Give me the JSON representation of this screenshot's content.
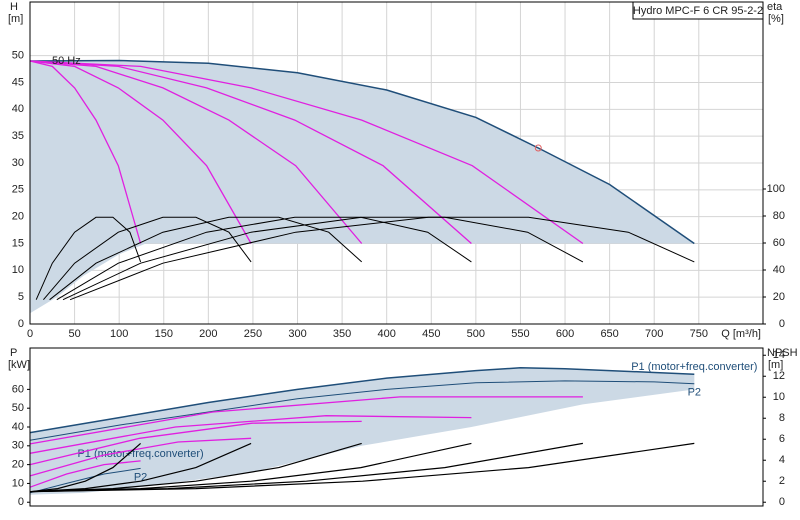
{
  "chart_data": [
    {
      "type": "line",
      "title": "Hydro MPC-F 6 CR 95-2-2",
      "annotation": "50 Hz",
      "y_label": "H",
      "y_unit": "[m]",
      "y2_label": "eta",
      "y2_unit": "[%]",
      "x_label": "Q [m³/h]",
      "xlim": [
        0,
        822
      ],
      "xticks": [
        0,
        50,
        100,
        150,
        200,
        250,
        300,
        350,
        400,
        450,
        500,
        550,
        600,
        650,
        700,
        750
      ],
      "ylim": [
        0,
        60
      ],
      "yticks": [
        0,
        5,
        10,
        15,
        20,
        25,
        30,
        35,
        40,
        45,
        50
      ],
      "y2lim": [
        0,
        238.5
      ],
      "y2ticks": [
        0,
        20,
        40,
        60,
        80,
        100
      ],
      "grid": true,
      "region_color": "#ccd9e5",
      "region": {
        "upper_series": 0,
        "x": [
          745,
          130,
          100,
          60,
          30,
          0
        ],
        "lower": [
          15,
          15,
          13,
          9,
          5,
          2
        ]
      },
      "duty_point": {
        "x": 570,
        "y": 32.8,
        "color": "#e06060"
      },
      "series": [
        {
          "color": "#1f4e79",
          "width": 1.5,
          "x": [
            0,
            100,
            200,
            300,
            400,
            500,
            570,
            650,
            745
          ],
          "values": [
            49,
            49.1,
            48.6,
            46.8,
            43.6,
            38.5,
            32.8,
            26,
            15
          ]
        },
        {
          "color": "#e020e0",
          "width": 1.3,
          "x": [
            0,
            25,
            50,
            74,
            99,
            124
          ],
          "values": [
            49,
            48,
            44,
            38,
            29.5,
            15
          ]
        },
        {
          "color": "#e020e0",
          "width": 1.3,
          "x": [
            0,
            50,
            99,
            149,
            198,
            248
          ],
          "values": [
            49,
            48,
            44,
            38,
            29.5,
            15
          ]
        },
        {
          "color": "#e020e0",
          "width": 1.3,
          "x": [
            0,
            74,
            149,
            223,
            298,
            372
          ],
          "values": [
            49,
            48,
            44,
            38,
            29.5,
            15
          ]
        },
        {
          "color": "#e020e0",
          "width": 1.3,
          "x": [
            0,
            99,
            198,
            297,
            396,
            495
          ],
          "values": [
            49,
            48,
            44,
            38,
            29.5,
            15
          ]
        },
        {
          "color": "#e020e0",
          "width": 1.3,
          "x": [
            0,
            124,
            248,
            372,
            496,
            620
          ],
          "values": [
            49,
            48,
            44,
            38,
            29.5,
            15
          ]
        },
        {
          "color": "#000000",
          "width": 1,
          "axis": "y2",
          "x": [
            7,
            25,
            50,
            74,
            93,
            112,
            124
          ],
          "values": [
            18,
            45,
            68,
            79,
            79,
            68,
            46
          ]
        },
        {
          "color": "#000000",
          "width": 1,
          "axis": "y2",
          "x": [
            15,
            50,
            99,
            149,
            186,
            223,
            248
          ],
          "values": [
            18,
            45,
            68,
            79,
            79,
            68,
            46
          ]
        },
        {
          "color": "#000000",
          "width": 1,
          "axis": "y2",
          "x": [
            22,
            74,
            149,
            223,
            279,
            335,
            372
          ],
          "values": [
            18,
            45,
            68,
            79,
            79,
            68,
            46
          ]
        },
        {
          "color": "#000000",
          "width": 1,
          "axis": "y2",
          "x": [
            30,
            99,
            198,
            297,
            371,
            446,
            495
          ],
          "values": [
            18,
            45,
            68,
            79,
            79,
            68,
            46
          ]
        },
        {
          "color": "#000000",
          "width": 1,
          "axis": "y2",
          "x": [
            37,
            124,
            248,
            372,
            465,
            558,
            620
          ],
          "values": [
            18,
            45,
            68,
            79,
            79,
            68,
            46
          ]
        },
        {
          "color": "#000000",
          "width": 1,
          "axis": "y2",
          "x": [
            45,
            149,
            298,
            447,
            559,
            671,
            745
          ],
          "values": [
            18,
            45,
            68,
            79,
            79,
            68,
            46
          ]
        }
      ]
    },
    {
      "type": "line",
      "y_label": "P",
      "y_unit": "[kW]",
      "y2_label": "NPSH",
      "y2_unit": "[m]",
      "xlim": [
        0,
        822
      ],
      "ylim": [
        -2,
        82
      ],
      "yticks": [
        0,
        10,
        20,
        30,
        40,
        50,
        60
      ],
      "y2lim": [
        -0.36,
        14.69
      ],
      "y2ticks": [
        0,
        2,
        4,
        6,
        8,
        10,
        12,
        14
      ],
      "grid": false,
      "region_color": "#ccd9e5",
      "region": {
        "upper_series": 0,
        "x": [
          745,
          620,
          495,
          372,
          250,
          124,
          60,
          0
        ],
        "lower": [
          60,
          52,
          40,
          30,
          16,
          8,
          5,
          4
        ]
      },
      "series": [
        {
          "name": "P1 (motor+freq.converter)",
          "label_position": "above",
          "color": "#1f4e79",
          "width": 1.5,
          "x": [
            0,
            100,
            200,
            300,
            400,
            500,
            550,
            600,
            700,
            745
          ],
          "values": [
            37,
            45,
            53,
            60,
            66,
            70,
            71.5,
            71,
            69,
            68
          ]
        },
        {
          "name": "P2",
          "label_position": "below",
          "color": "#1f4e79",
          "width": 1,
          "x": [
            0,
            100,
            200,
            300,
            400,
            500,
            600,
            700,
            745
          ],
          "values": [
            33,
            41,
            48,
            55,
            60,
            63.5,
            64.5,
            64,
            63
          ]
        },
        {
          "name": "P1 (motor+freq.converter)",
          "label_position": "above",
          "color": "#e020e0",
          "width": 1.3,
          "x": [
            0,
            41,
            83,
            124
          ],
          "values": [
            8,
            15,
            20,
            22
          ]
        },
        {
          "name": "P2",
          "label_position": "below",
          "color": "#1f4e79",
          "width": 1,
          "x": [
            0,
            41,
            83,
            124
          ],
          "values": [
            5,
            10,
            15,
            18
          ]
        },
        {
          "color": "#e020e0",
          "width": 1.3,
          "x": [
            0,
            82,
            166,
            248
          ],
          "values": [
            14,
            25,
            32,
            34
          ]
        },
        {
          "color": "#e020e0",
          "width": 1.3,
          "x": [
            0,
            123,
            249,
            372
          ],
          "values": [
            20,
            34,
            42,
            43
          ]
        },
        {
          "color": "#e020e0",
          "width": 1.3,
          "x": [
            0,
            163,
            332,
            495
          ],
          "values": [
            26,
            40,
            46,
            45
          ]
        },
        {
          "color": "#e020e0",
          "width": 1.3,
          "x": [
            0,
            205,
            415,
            620
          ],
          "values": [
            31,
            48,
            56,
            56
          ]
        },
        {
          "color": "#000000",
          "width": 1.2,
          "axis": "y2",
          "x": [
            0,
            31,
            62,
            93,
            124
          ],
          "values": [
            1,
            1.3,
            2,
            3.3,
            5.6
          ]
        },
        {
          "color": "#000000",
          "width": 1.2,
          "axis": "y2",
          "x": [
            0,
            62,
            124,
            186,
            248
          ],
          "values": [
            1,
            1.3,
            2,
            3.3,
            5.6
          ]
        },
        {
          "color": "#000000",
          "width": 1.2,
          "axis": "y2",
          "x": [
            0,
            93,
            186,
            279,
            372
          ],
          "values": [
            1,
            1.3,
            2,
            3.3,
            5.6
          ]
        },
        {
          "color": "#000000",
          "width": 1.2,
          "axis": "y2",
          "x": [
            0,
            124,
            248,
            371,
            495
          ],
          "values": [
            1,
            1.3,
            2,
            3.3,
            5.6
          ]
        },
        {
          "color": "#000000",
          "width": 1.2,
          "axis": "y2",
          "x": [
            0,
            155,
            310,
            465,
            620
          ],
          "values": [
            1,
            1.3,
            2,
            3.3,
            5.6
          ]
        },
        {
          "color": "#000000",
          "width": 1.2,
          "axis": "y2",
          "x": [
            0,
            186,
            373,
            559,
            745
          ],
          "values": [
            1,
            1.3,
            2,
            3.3,
            5.6
          ]
        }
      ]
    }
  ]
}
